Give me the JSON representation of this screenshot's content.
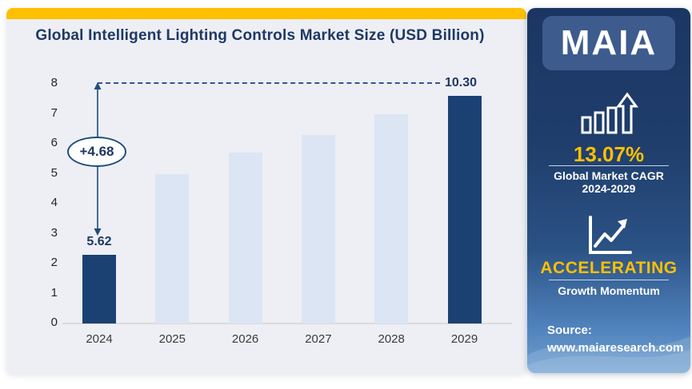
{
  "chart_card": {
    "accent_color": "#FFC000",
    "background": "#EDEFF4",
    "annotations": {
      "growth_delta": "+4.68",
      "start_value": "5.62",
      "end_value": "10.30"
    }
  },
  "chart_data": {
    "type": "bar",
    "title": "Global Intelligent Lighting Controls Market Size (USD Billion)",
    "xlabel": "",
    "ylabel": "",
    "categories": [
      "2024",
      "2025",
      "2026",
      "2027",
      "2028",
      "2029"
    ],
    "values": [
      5.62,
      null,
      null,
      null,
      null,
      10.3
    ],
    "bar_heights_axis_units": [
      2.3,
      5.0,
      5.7,
      6.3,
      7.0,
      7.6
    ],
    "ylim": [
      0,
      8
    ],
    "yticks": [
      0,
      1,
      2,
      3,
      4,
      5,
      6,
      7,
      8
    ],
    "grid": false,
    "legend": "none",
    "highlight_indices": [
      0,
      5
    ],
    "colors": {
      "highlight_bar": "#1B4173",
      "forecast_bar": "#DCE5F4"
    },
    "dashed_reference_line_axis_y": 8,
    "annotations": [
      "double-headed arrow with +4.68 badge between 2024 bar and dashed top line",
      "5.62 data label on 2024 bar",
      "10.30 data label on 2029 bar at dashed line level"
    ]
  },
  "sidebar": {
    "logo": "MAIA",
    "cagr_value": "13.07%",
    "cagr_label": "Global Market CAGR",
    "cagr_period": "2024-2029",
    "momentum_value": "ACCELERATING",
    "momentum_label": "Growth Momentum",
    "source_label": "Source:",
    "source_url": "www.maiaresearch.com",
    "accent_text_color": "#FFC000",
    "icons": [
      "bar-growth-icon",
      "line-chart-up-icon"
    ]
  }
}
